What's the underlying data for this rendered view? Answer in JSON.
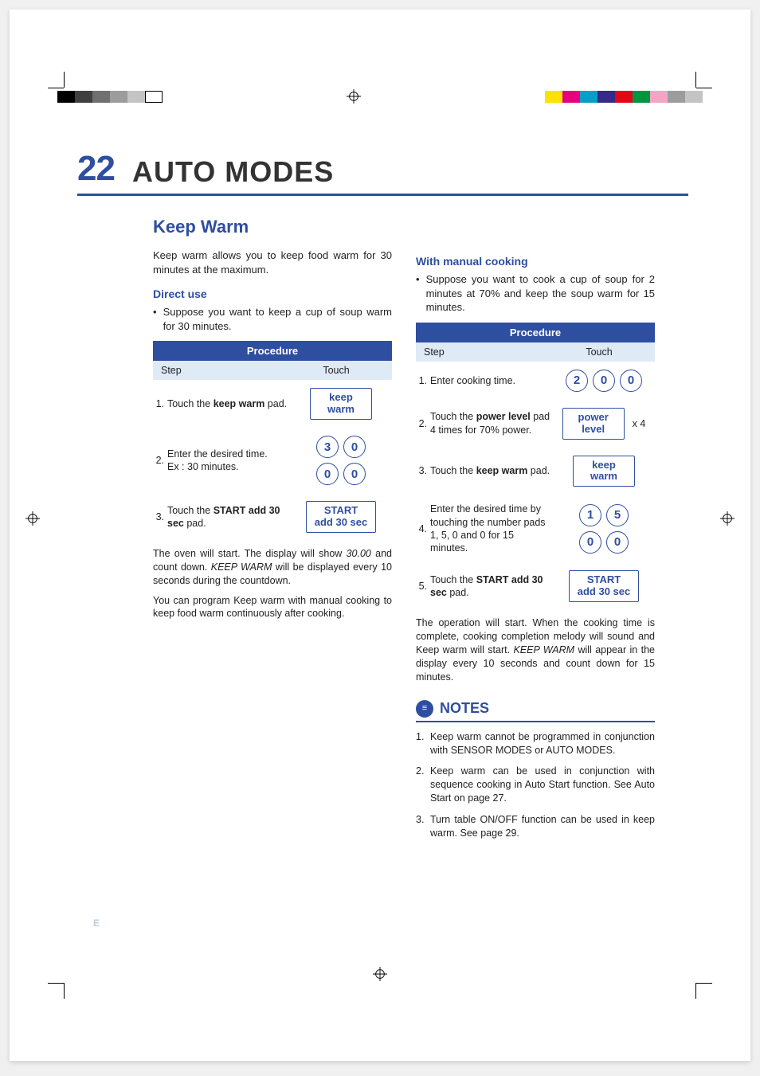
{
  "page_number": "22",
  "page_title": "AUTO MODES",
  "section_title": "Keep Warm",
  "intro": "Keep warm allows you to keep food warm for 30 minutes at the maximum.",
  "direct_use": {
    "heading": "Direct use",
    "bullet": "Suppose you want to keep a cup of soup warm for 30 minutes.",
    "procedure_label": "Procedure",
    "col_step": "Step",
    "col_touch": "Touch",
    "steps": [
      {
        "n": "1.",
        "before": "Touch the ",
        "bold": "keep warm",
        "after": " pad.",
        "touch": {
          "type": "rect",
          "lines": [
            "keep",
            "warm"
          ]
        }
      },
      {
        "n": "2.",
        "before": "Enter the desired time.",
        "after": "Ex : 30 minutes.",
        "touch": {
          "type": "digits2",
          "rows": [
            [
              "3",
              "0"
            ],
            [
              "0",
              "0"
            ]
          ]
        }
      },
      {
        "n": "3.",
        "before": "Touch the ",
        "bold": "START add 30 sec",
        "after": " pad.",
        "touch": {
          "type": "rect",
          "lines": [
            "START",
            "add 30 sec"
          ]
        }
      }
    ],
    "after1": "The oven will start. The display will show ",
    "after1_i": "30.00",
    "after1b": " and count down. ",
    "after1_i2": "KEEP WARM",
    "after1c": " will be displayed every 10 seconds during the countdown.",
    "after2": "You can program Keep warm with manual cooking to keep food warm continuously after cooking."
  },
  "manual": {
    "heading": "With manual cooking",
    "bullet": "Suppose you want to cook a cup of soup for 2 minutes at 70% and keep the soup warm for 15 minutes.",
    "procedure_label": "Procedure",
    "col_step": "Step",
    "col_touch": "Touch",
    "steps": [
      {
        "n": "1.",
        "before": "Enter cooking time.",
        "touch": {
          "type": "digits",
          "row": [
            "2",
            "0",
            "0"
          ]
        }
      },
      {
        "n": "2.",
        "before": "Touch the ",
        "bold": "power level",
        "after": " pad 4 times for 70% power.",
        "touch": {
          "type": "rectx",
          "lines": [
            "power",
            "level"
          ],
          "x": "x 4"
        }
      },
      {
        "n": "3.",
        "before": "Touch the ",
        "bold": "keep warm",
        "after": " pad.",
        "touch": {
          "type": "rect",
          "lines": [
            "keep",
            "warm"
          ]
        }
      },
      {
        "n": "4.",
        "before": "Enter the desired time by touching the number pads 1, 5, 0 and 0 for 15 minutes.",
        "touch": {
          "type": "digits2b",
          "rows": [
            [
              "1",
              "5"
            ],
            [
              "0",
              "0"
            ]
          ]
        }
      },
      {
        "n": "5.",
        "before": "Touch the ",
        "bold": "START add 30 sec",
        "after": " pad.",
        "touch": {
          "type": "rect",
          "lines": [
            "START",
            "add 30 sec"
          ]
        }
      }
    ],
    "after": "The operation will start. When the cooking time is complete, cooking completion melody will sound and Keep warm will start. ",
    "after_i": "KEEP WARM",
    "after2": " will appear in the display every 10 seconds and count down for 15 minutes."
  },
  "notes": {
    "title": "NOTES",
    "items": [
      {
        "n": "1.",
        "t": "Keep warm cannot be programmed in conjunction with SENSOR MODES or AUTO MODES."
      },
      {
        "n": "2.",
        "t": "Keep warm can be used in conjunction with sequence cooking in Auto Start function. See Auto Start on page 27."
      },
      {
        "n": "3.",
        "t": "Turn table ON/OFF function can be used in keep warm. See page 29."
      }
    ]
  },
  "footer_e": "E",
  "gray_steps": [
    "#000000",
    "#404040",
    "#707070",
    "#9c9c9c",
    "#c4c4c4",
    "#ffffff"
  ],
  "color_bar": [
    "#ffe100",
    "#e6007e",
    "#00a0c6",
    "#362a86",
    "#e30613",
    "#009640",
    "#f5a3c7",
    "#9c9c9c",
    "#c4c4c4"
  ]
}
